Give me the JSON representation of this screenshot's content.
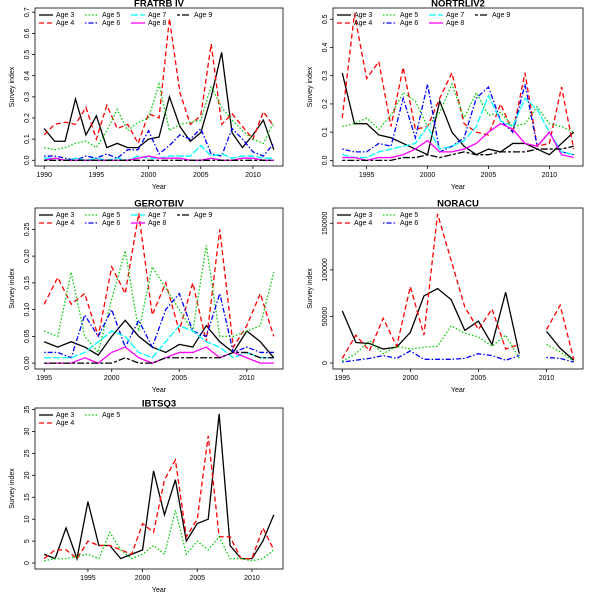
{
  "chart_data": [
    {
      "type": "line",
      "title": "FRATRB IV",
      "xlabel": "Year",
      "ylabel": "Survey index",
      "legend": "top-left",
      "x": [
        1990,
        1991,
        1992,
        1993,
        1994,
        1995,
        1996,
        1997,
        1998,
        1999,
        2000,
        2001,
        2002,
        2003,
        2004,
        2005,
        2006,
        2007,
        2008,
        2009,
        2010,
        2011,
        2012
      ],
      "xlim": [
        1989.12,
        2012.88
      ],
      "ylim": [
        -0.027,
        0.72
      ],
      "xticks": [
        1990,
        1995,
        2000,
        2005,
        2010
      ],
      "yticks": [
        {
          "value": 0,
          "label": "0.0"
        },
        0.1,
        0.2,
        0.3,
        0.4,
        0.5,
        0.6,
        0.7
      ],
      "series": [
        {
          "name": "Age 3",
          "color": "#000000",
          "linestyle": "solid",
          "values": [
            0.15,
            0.09,
            0.09,
            0.29,
            0.12,
            0.21,
            0.06,
            0.08,
            0.06,
            0.06,
            0.1,
            0.11,
            0.3,
            0.16,
            0.09,
            0.13,
            0.3,
            0.51,
            0.13,
            0.06,
            0.12,
            0.19,
            0.05
          ]
        },
        {
          "name": "Age 4",
          "color": "#ff0000",
          "linestyle": "dashed",
          "values": [
            0.12,
            0.17,
            0.18,
            0.17,
            0.25,
            0.1,
            0.26,
            0.15,
            0.17,
            0.08,
            0.22,
            0.2,
            0.67,
            0.32,
            0.17,
            0.21,
            0.55,
            0.17,
            0.22,
            0.16,
            0.1,
            0.23,
            0.16
          ]
        },
        {
          "name": "Age 5",
          "color": "#00cd00",
          "linestyle": "dotted",
          "values": [
            0.06,
            0.05,
            0.06,
            0.08,
            0.09,
            0.06,
            0.14,
            0.24,
            0.14,
            0.18,
            0.2,
            0.36,
            0.14,
            0.17,
            0.18,
            0.19,
            0.35,
            0.25,
            0.19,
            0.14,
            0.1,
            0.08,
            0.18
          ]
        },
        {
          "name": "Age 6",
          "color": "#0000ff",
          "linestyle": "dotdash",
          "values": [
            0.02,
            0.02,
            0.01,
            0,
            0.02,
            0.01,
            0.03,
            0.01,
            0.05,
            0.05,
            0.14,
            0.03,
            0.07,
            0.12,
            0.1,
            0.15,
            0.03,
            0.02,
            0.15,
            0.1,
            0.04,
            0.02,
            0.08
          ]
        },
        {
          "name": "Age 7",
          "color": "#00ffff",
          "linestyle": "longdash",
          "values": [
            0.01,
            0.01,
            0,
            0.01,
            0,
            0.01,
            0,
            0.01,
            0,
            0.02,
            0.01,
            0.01,
            0.02,
            0.02,
            0.02,
            0.07,
            0.02,
            0.03,
            0.01,
            0.02,
            0.02,
            0.01,
            0.01
          ]
        },
        {
          "name": "Age 8",
          "color": "#ff00ff",
          "linestyle": "solid",
          "values": [
            0,
            0.01,
            0,
            0,
            0,
            0,
            0,
            0,
            0,
            0.01,
            0.02,
            0.01,
            0.01,
            0.01,
            0,
            0,
            0.01,
            0,
            0,
            0.01,
            0.01,
            0,
            0
          ]
        },
        {
          "name": "Age 9",
          "color": "#000000",
          "linestyle": "twodash",
          "values": [
            0,
            0,
            0,
            0,
            0,
            0,
            0,
            0,
            0,
            0,
            0,
            0,
            0,
            0,
            0,
            0,
            0,
            0,
            0,
            0,
            0,
            0,
            0
          ]
        }
      ]
    },
    {
      "type": "line",
      "title": "NORTRLIV2",
      "xlabel": "Year",
      "ylabel": "Survey index",
      "legend": "top-left",
      "x": [
        1993,
        1994,
        1995,
        1996,
        1997,
        1998,
        1999,
        2000,
        2001,
        2002,
        2003,
        2004,
        2005,
        2006,
        2007,
        2008,
        2009,
        2010,
        2011,
        2012
      ],
      "xlim": [
        1992.24,
        2012.76
      ],
      "ylim": [
        -0.02,
        0.54
      ],
      "xticks": [
        1995,
        2000,
        2005,
        2010
      ],
      "yticks": [
        {
          "value": 0,
          "label": "0.0"
        },
        0.1,
        0.2,
        0.3,
        0.4,
        0.5
      ],
      "series": [
        {
          "name": "Age 3",
          "color": "#000000",
          "linestyle": "solid",
          "values": [
            0.31,
            0.13,
            0.13,
            0.09,
            0.08,
            0.06,
            0.04,
            0.02,
            0.21,
            0.1,
            0.05,
            0.02,
            0.04,
            0.03,
            0.06,
            0.06,
            0.04,
            0.02,
            0.06,
            0.1
          ]
        },
        {
          "name": "Age 4",
          "color": "#ff0000",
          "linestyle": "dashed",
          "values": [
            0.15,
            0.52,
            0.29,
            0.35,
            0.12,
            0.33,
            0.11,
            0.12,
            0.22,
            0.31,
            0.13,
            0.1,
            0.09,
            0.2,
            0.1,
            0.31,
            0.05,
            0.06,
            0.26,
            0.04
          ]
        },
        {
          "name": "Age 5",
          "color": "#00cd00",
          "linestyle": "dotted",
          "values": [
            0.12,
            0.13,
            0.15,
            0.11,
            0.16,
            0.24,
            0.21,
            0.12,
            0.17,
            0.27,
            0.15,
            0.24,
            0.16,
            0.17,
            0.12,
            0.13,
            0.19,
            0.13,
            0.12,
            0.1
          ]
        },
        {
          "name": "Age 6",
          "color": "#0000ff",
          "linestyle": "dotdash",
          "values": [
            0.04,
            0.03,
            0.03,
            0.06,
            0.05,
            0.22,
            0.08,
            0.27,
            0.03,
            0.05,
            0.08,
            0.22,
            0.26,
            0.14,
            0.1,
            0.27,
            0.05,
            0.1,
            0.03,
            0.02
          ]
        },
        {
          "name": "Age 7",
          "color": "#00ffff",
          "linestyle": "longdash",
          "values": [
            0.02,
            0.01,
            0.01,
            0.03,
            0.04,
            0.05,
            0.06,
            0.12,
            0.04,
            0.05,
            0.07,
            0.12,
            0.23,
            0.14,
            0.12,
            0.22,
            0.18,
            0.1,
            0.03,
            0.02
          ]
        },
        {
          "name": "Age 8",
          "color": "#ff00ff",
          "linestyle": "solid",
          "values": [
            0.01,
            0.01,
            0,
            0.01,
            0.01,
            0.02,
            0.04,
            0.07,
            0.03,
            0.03,
            0.04,
            0.06,
            0.1,
            0.13,
            0.11,
            0.06,
            0.05,
            0.1,
            0.02,
            0.01
          ]
        },
        {
          "name": "Age 9",
          "color": "#000000",
          "linestyle": "twodash",
          "values": [
            0,
            0,
            0,
            0,
            0,
            0.01,
            0.01,
            0.02,
            0.01,
            0.02,
            0.03,
            0.02,
            0.02,
            0.03,
            0.03,
            0.03,
            0.04,
            0.04,
            0.04,
            0.05
          ]
        }
      ]
    },
    {
      "type": "line",
      "title": "GEROTBIV",
      "xlabel": "Year",
      "ylabel": "Survey index",
      "legend": "top-left",
      "x": [
        1995,
        1996,
        1997,
        1998,
        1999,
        2000,
        2001,
        2002,
        2003,
        2004,
        2005,
        2006,
        2007,
        2008,
        2009,
        2010,
        2011,
        2012
      ],
      "xlim": [
        1994.32,
        2012.68
      ],
      "ylim": [
        -0.011,
        0.29
      ],
      "xticks": [
        1995,
        2000,
        2005,
        2010
      ],
      "yticks": [
        {
          "value": 0,
          "label": "0.00"
        },
        0.05,
        {
          "value": 0.1,
          "label": "0.10"
        },
        0.15,
        {
          "value": 0.2,
          "label": "0.20"
        },
        0.25
      ],
      "series": [
        {
          "name": "Age 3",
          "color": "#000000",
          "linestyle": "solid",
          "values": [
            0.04,
            0.03,
            0.04,
            0.03,
            0.015,
            0.05,
            0.08,
            0.05,
            0.03,
            0.02,
            0.035,
            0.03,
            0.07,
            0.04,
            0.02,
            0.06,
            0.04,
            0.01
          ]
        },
        {
          "name": "Age 4",
          "color": "#ff0000",
          "linestyle": "dashed",
          "values": [
            0.11,
            0.16,
            0.11,
            0.13,
            0.05,
            0.18,
            0.13,
            0.28,
            0.09,
            0.15,
            0.06,
            0.15,
            0.04,
            0.25,
            0.03,
            0.07,
            0.13,
            0.05
          ]
        },
        {
          "name": "Age 5",
          "color": "#00cd00",
          "linestyle": "dotted",
          "values": [
            0.06,
            0.05,
            0.17,
            0.05,
            0.02,
            0.12,
            0.21,
            0.06,
            0.18,
            0.14,
            0.1,
            0.06,
            0.22,
            0.05,
            0.05,
            0.06,
            0.07,
            0.17
          ]
        },
        {
          "name": "Age 6",
          "color": "#0000ff",
          "linestyle": "dotdash",
          "values": [
            0.02,
            0.02,
            0.01,
            0.09,
            0.05,
            0.1,
            0.03,
            0.08,
            0.03,
            0.1,
            0.13,
            0.06,
            0.05,
            0.13,
            0.02,
            0.03,
            0.02,
            0.02
          ]
        },
        {
          "name": "Age 7",
          "color": "#00ffff",
          "linestyle": "longdash",
          "values": [
            0.01,
            0.01,
            0.01,
            0.02,
            0.04,
            0.06,
            0.05,
            0.02,
            0.01,
            0.04,
            0.07,
            0.06,
            0.04,
            0.03,
            0.01,
            0.02,
            0.01,
            0.01
          ]
        },
        {
          "name": "Age 8",
          "color": "#ff00ff",
          "linestyle": "solid",
          "values": [
            0,
            0,
            0,
            0.01,
            0,
            0.02,
            0.03,
            0.01,
            0,
            0.01,
            0.02,
            0.02,
            0.03,
            0.01,
            0.02,
            0.01,
            0,
            0
          ]
        },
        {
          "name": "Age 9",
          "color": "#000000",
          "linestyle": "twodash",
          "values": [
            0,
            0,
            0,
            0,
            0,
            0,
            0.01,
            0,
            0,
            0.01,
            0.01,
            0.01,
            0.01,
            0.01,
            0.02,
            0.02,
            0.01,
            0.01
          ]
        }
      ]
    },
    {
      "type": "line",
      "title": "NORACU",
      "xlabel": "Year",
      "ylabel": "Survey index",
      "legend": "top-left",
      "x": [
        1995,
        1996,
        1997,
        1998,
        1999,
        2000,
        2001,
        2002,
        2003,
        2004,
        2005,
        2006,
        2007,
        2008,
        2009,
        2010,
        2011,
        2012
      ],
      "xlim": [
        1994.32,
        2012.68
      ],
      "ylim": [
        -6400,
        166400
      ],
      "xticks": [
        1995,
        2000,
        2005,
        2010
      ],
      "yticks": [
        0,
        50000,
        100000,
        150000
      ],
      "series": [
        {
          "name": "Age 3",
          "color": "#000000",
          "linestyle": "solid",
          "values": [
            56000,
            22000,
            21000,
            15000,
            17000,
            33000,
            72000,
            80000,
            68000,
            35000,
            45000,
            20000,
            76000,
            10000,
            null,
            34000,
            16000,
            3000
          ]
        },
        {
          "name": "Age 4",
          "color": "#ff0000",
          "linestyle": "dashed",
          "values": [
            5000,
            30000,
            13000,
            48000,
            18000,
            82000,
            30000,
            160000,
            110000,
            60000,
            36000,
            58000,
            15000,
            20000,
            null,
            36000,
            62000,
            4000
          ]
        },
        {
          "name": "Age 5",
          "color": "#00cd00",
          "linestyle": "dotted",
          "values": [
            2000,
            10000,
            24000,
            10000,
            18000,
            15000,
            17000,
            18000,
            40000,
            32000,
            28000,
            18000,
            30000,
            5000,
            null,
            20000,
            12000,
            2000
          ]
        },
        {
          "name": "Age 6",
          "color": "#0000ff",
          "linestyle": "dotdash",
          "values": [
            1000,
            3000,
            5000,
            8000,
            5000,
            13000,
            4000,
            4000,
            4000,
            5000,
            10000,
            8000,
            3000,
            8000,
            null,
            6000,
            5000,
            1000
          ]
        }
      ]
    },
    {
      "type": "line",
      "title": "IBTSQ3",
      "xlabel": "Year",
      "ylabel": "Survey index",
      "legend": "top-left",
      "x": [
        1991,
        1992,
        1993,
        1994,
        1995,
        1996,
        1997,
        1998,
        1999,
        2000,
        2001,
        2002,
        2003,
        2004,
        2005,
        2006,
        2007,
        2008,
        2009,
        2010,
        2011,
        2012
      ],
      "xlim": [
        1990.16,
        2012.84
      ],
      "ylim": [
        -1.36,
        35.36
      ],
      "xticks": [
        1995,
        2000,
        2005,
        2010
      ],
      "yticks": [
        0,
        5,
        10,
        15,
        20,
        25,
        30,
        35
      ],
      "series": [
        {
          "name": "Age 3",
          "color": "#000000",
          "linestyle": "solid",
          "values": [
            2,
            1,
            8,
            1,
            14,
            4,
            4,
            1,
            2,
            3,
            21,
            11,
            19,
            5,
            9,
            10,
            34,
            4,
            1,
            1,
            5,
            11
          ]
        },
        {
          "name": "Age 4",
          "color": "#ff0000",
          "linestyle": "dashed",
          "values": [
            1,
            3,
            3,
            1,
            5,
            4,
            4,
            3,
            2,
            9,
            7,
            19,
            23.5,
            6,
            10,
            29,
            6,
            6,
            1,
            1,
            8,
            3
          ]
        },
        {
          "name": "Age 5",
          "color": "#00cd00",
          "linestyle": "dotted",
          "values": [
            0.5,
            1,
            1,
            1.5,
            2,
            1,
            7,
            3,
            1,
            2,
            4,
            2,
            12,
            2,
            5,
            3,
            6,
            1,
            1,
            0.5,
            1,
            3
          ]
        }
      ]
    }
  ]
}
